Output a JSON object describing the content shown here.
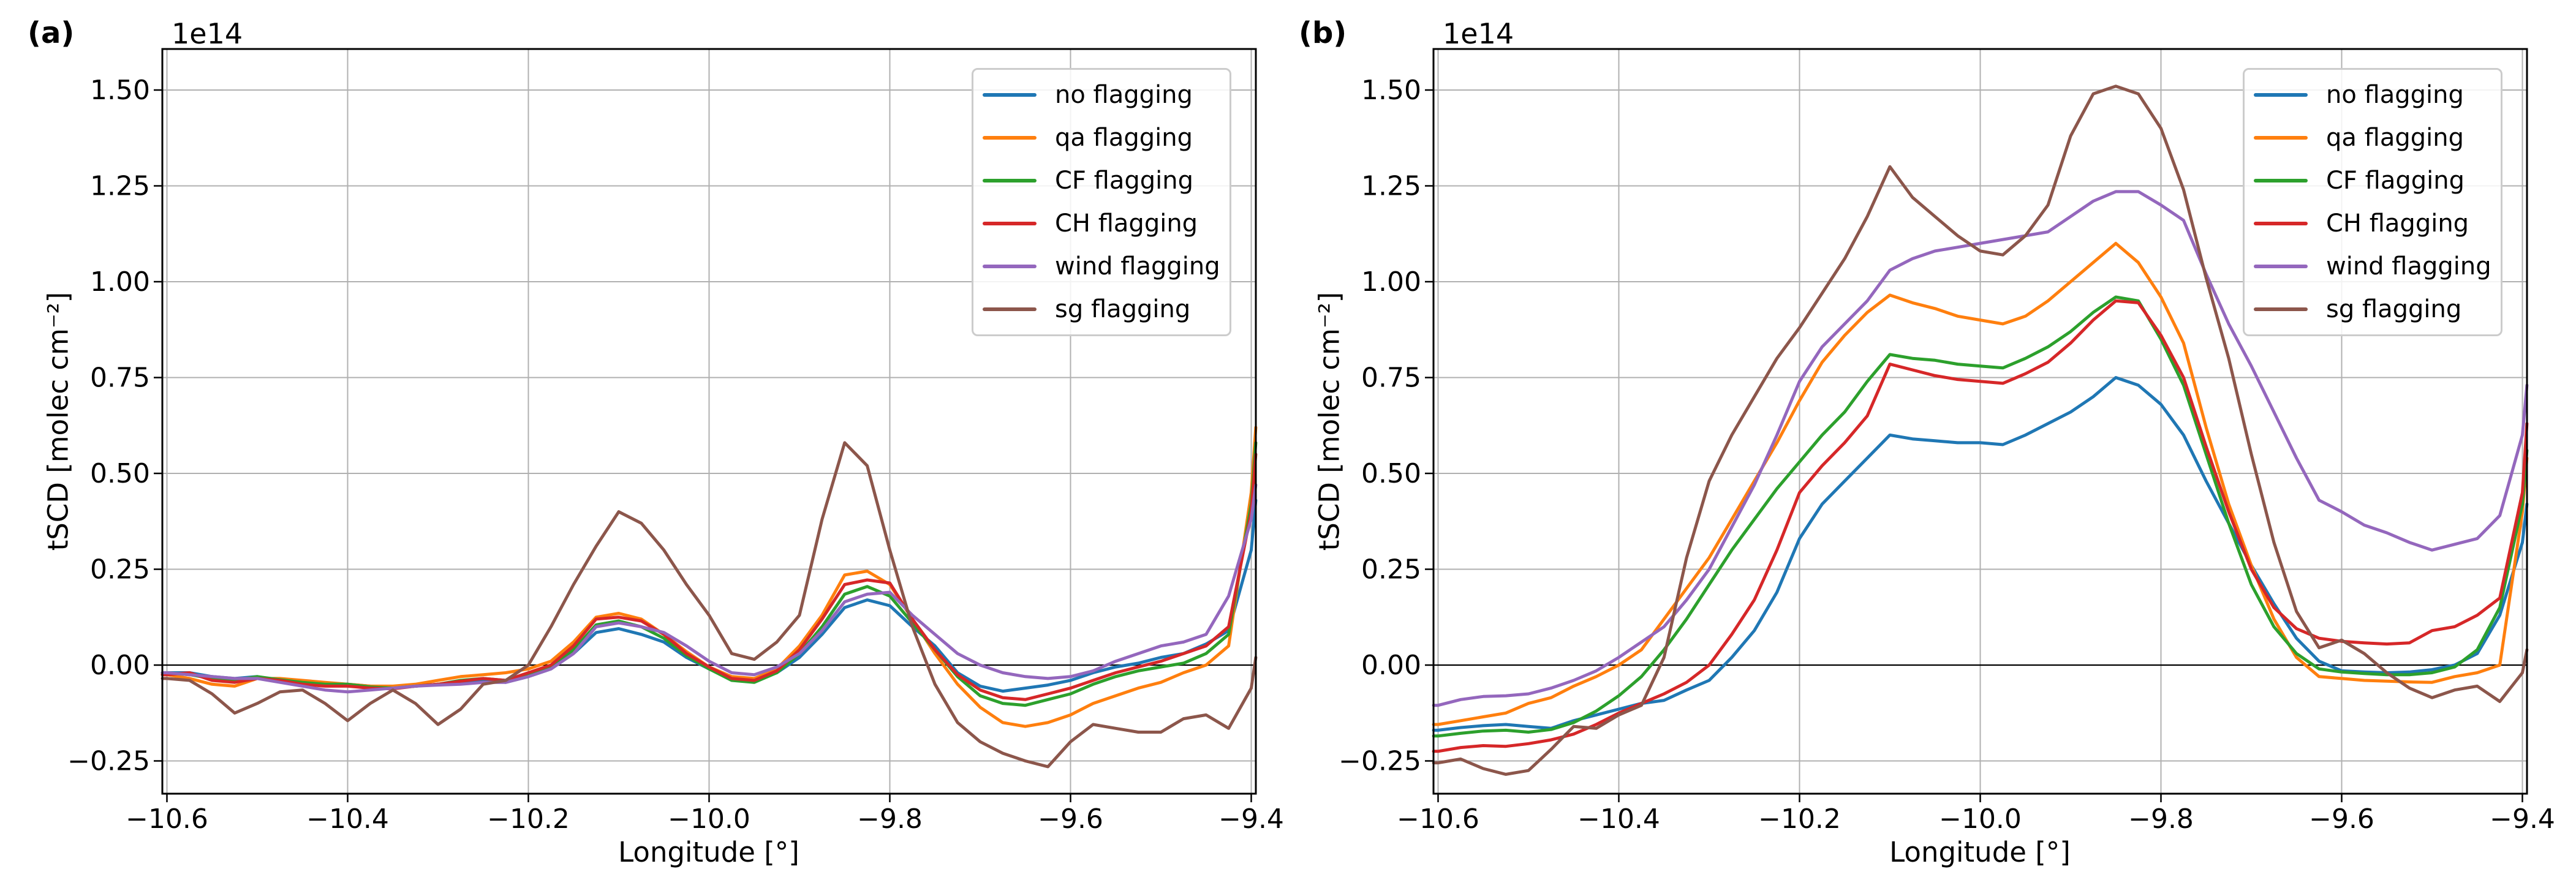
{
  "panels": [
    {
      "tag": "(a)",
      "offset_text": "1e14"
    },
    {
      "tag": "(b)",
      "offset_text": "1e14"
    }
  ],
  "legend": {
    "entries": [
      {
        "label": "no flagging",
        "color": "#1f77b4"
      },
      {
        "label": "qa flagging",
        "color": "#ff7f0e"
      },
      {
        "label": "CF flagging",
        "color": "#2ca02c"
      },
      {
        "label": "CH flagging",
        "color": "#d62728"
      },
      {
        "label": "wind flagging",
        "color": "#9467bd"
      },
      {
        "label": "sg flagging",
        "color": "#8c564b"
      }
    ],
    "position": "upper right"
  },
  "chart_data": [
    {
      "type": "line",
      "panel": "(a)",
      "xlabel": "Longitude [°]",
      "ylabel": "tSCD [molec cm⁻²]",
      "y_offset_text": "1e14",
      "grid": true,
      "zero_line": true,
      "legend_position": "upper right",
      "xlim": [
        -10.605,
        -9.395
      ],
      "ylim": [
        -0.335,
        1.607
      ],
      "xticks": {
        "values": [
          -10.6,
          -10.4,
          -10.2,
          -10.0,
          -9.8,
          -9.6,
          -9.4
        ],
        "labels": [
          "−10.6",
          "−10.4",
          "−10.2",
          "−10.0",
          "−9.8",
          "−9.6",
          "−9.4"
        ]
      },
      "yticks": {
        "values": [
          1.5,
          1.25,
          1.0,
          0.75,
          0.5,
          0.25,
          0.0,
          -0.25
        ],
        "labels": [
          "1.50",
          "1.25",
          "1.00",
          "0.75",
          "0.50",
          "0.25",
          "0.00",
          "−0.25"
        ]
      },
      "x": [
        -10.605,
        -10.6,
        -10.575,
        -10.55,
        -10.525,
        -10.5,
        -10.475,
        -10.45,
        -10.425,
        -10.4,
        -10.375,
        -10.35,
        -10.325,
        -10.3,
        -10.275,
        -10.25,
        -10.225,
        -10.2,
        -10.175,
        -10.15,
        -10.125,
        -10.1,
        -10.075,
        -10.05,
        -10.025,
        -10.0,
        -9.975,
        -9.95,
        -9.925,
        -9.9,
        -9.875,
        -9.85,
        -9.825,
        -9.8,
        -9.775,
        -9.75,
        -9.725,
        -9.7,
        -9.675,
        -9.65,
        -9.625,
        -9.6,
        -9.575,
        -9.55,
        -9.525,
        -9.5,
        -9.475,
        -9.45,
        -9.425,
        -9.4,
        -9.395
      ],
      "series": [
        {
          "name": "no flagging",
          "color": "#1f77b4",
          "values": [
            -0.02,
            -0.02,
            -0.02,
            -0.03,
            -0.035,
            -0.03,
            -0.04,
            -0.045,
            -0.05,
            -0.05,
            -0.055,
            -0.06,
            -0.055,
            -0.05,
            -0.045,
            -0.04,
            -0.045,
            -0.03,
            -0.01,
            0.03,
            0.085,
            0.095,
            0.08,
            0.06,
            0.02,
            -0.01,
            -0.035,
            -0.04,
            -0.02,
            0.02,
            0.08,
            0.15,
            0.17,
            0.155,
            0.1,
            0.05,
            -0.02,
            -0.055,
            -0.068,
            -0.06,
            -0.052,
            -0.04,
            -0.02,
            -0.005,
            0.005,
            0.02,
            0.03,
            0.055,
            0.09,
            0.3,
            0.43
          ]
        },
        {
          "name": "qa flagging",
          "color": "#ff7f0e",
          "values": [
            -0.025,
            -0.025,
            -0.035,
            -0.05,
            -0.055,
            -0.035,
            -0.035,
            -0.04,
            -0.045,
            -0.05,
            -0.055,
            -0.055,
            -0.05,
            -0.04,
            -0.03,
            -0.025,
            -0.02,
            -0.01,
            0.01,
            0.06,
            0.125,
            0.135,
            0.12,
            0.08,
            0.035,
            -0.005,
            -0.03,
            -0.035,
            -0.01,
            0.05,
            0.13,
            0.235,
            0.245,
            0.21,
            0.12,
            0.03,
            -0.05,
            -0.11,
            -0.15,
            -0.16,
            -0.15,
            -0.13,
            -0.1,
            -0.08,
            -0.06,
            -0.045,
            -0.02,
            0.0,
            0.05,
            0.45,
            0.62
          ]
        },
        {
          "name": "CF flagging",
          "color": "#2ca02c",
          "values": [
            -0.02,
            -0.02,
            -0.025,
            -0.035,
            -0.04,
            -0.03,
            -0.038,
            -0.045,
            -0.05,
            -0.05,
            -0.057,
            -0.06,
            -0.055,
            -0.05,
            -0.04,
            -0.035,
            -0.04,
            -0.025,
            -0.005,
            0.04,
            0.105,
            0.115,
            0.1,
            0.07,
            0.025,
            -0.01,
            -0.04,
            -0.045,
            -0.02,
            0.03,
            0.1,
            0.185,
            0.205,
            0.18,
            0.11,
            0.04,
            -0.03,
            -0.08,
            -0.1,
            -0.105,
            -0.09,
            -0.075,
            -0.05,
            -0.03,
            -0.015,
            -0.005,
            0.005,
            0.03,
            0.08,
            0.42,
            0.58
          ]
        },
        {
          "name": "CH flagging",
          "color": "#d62728",
          "values": [
            -0.025,
            -0.025,
            -0.02,
            -0.04,
            -0.045,
            -0.035,
            -0.04,
            -0.05,
            -0.055,
            -0.055,
            -0.06,
            -0.062,
            -0.055,
            -0.05,
            -0.042,
            -0.035,
            -0.04,
            -0.02,
            0.0,
            0.05,
            0.12,
            0.125,
            0.115,
            0.08,
            0.03,
            -0.005,
            -0.035,
            -0.04,
            -0.015,
            0.04,
            0.12,
            0.21,
            0.222,
            0.214,
            0.12,
            0.04,
            -0.025,
            -0.065,
            -0.085,
            -0.09,
            -0.075,
            -0.06,
            -0.04,
            -0.02,
            -0.005,
            0.01,
            0.03,
            0.05,
            0.1,
            0.4,
            0.55
          ]
        },
        {
          "name": "wind flagging",
          "color": "#9467bd",
          "values": [
            -0.02,
            -0.02,
            -0.025,
            -0.03,
            -0.035,
            -0.035,
            -0.045,
            -0.055,
            -0.065,
            -0.07,
            -0.065,
            -0.06,
            -0.055,
            -0.052,
            -0.05,
            -0.045,
            -0.045,
            -0.03,
            -0.01,
            0.03,
            0.1,
            0.11,
            0.1,
            0.085,
            0.05,
            0.01,
            -0.02,
            -0.025,
            -0.005,
            0.03,
            0.09,
            0.165,
            0.185,
            0.19,
            0.13,
            0.08,
            0.03,
            0.0,
            -0.02,
            -0.03,
            -0.035,
            -0.03,
            -0.015,
            0.01,
            0.03,
            0.05,
            0.06,
            0.08,
            0.18,
            0.38,
            0.47
          ]
        },
        {
          "name": "sg flagging",
          "color": "#8c564b",
          "values": [
            -0.035,
            -0.035,
            -0.04,
            -0.075,
            -0.125,
            -0.1,
            -0.07,
            -0.065,
            -0.1,
            -0.145,
            -0.1,
            -0.065,
            -0.1,
            -0.155,
            -0.115,
            -0.05,
            -0.04,
            0.0,
            0.1,
            0.21,
            0.31,
            0.4,
            0.37,
            0.3,
            0.21,
            0.13,
            0.03,
            0.015,
            0.06,
            0.13,
            0.38,
            0.58,
            0.52,
            0.3,
            0.1,
            -0.05,
            -0.15,
            -0.2,
            -0.23,
            -0.25,
            -0.265,
            -0.2,
            -0.155,
            -0.165,
            -0.175,
            -0.175,
            -0.14,
            -0.13,
            -0.165,
            -0.06,
            0.02
          ]
        }
      ]
    },
    {
      "type": "line",
      "panel": "(b)",
      "xlabel": "Longitude [°]",
      "ylabel": "tSCD [molec cm⁻²]",
      "y_offset_text": "1e14",
      "grid": true,
      "zero_line": true,
      "legend_position": "upper right",
      "xlim": [
        -10.605,
        -9.395
      ],
      "ylim": [
        -0.335,
        1.607
      ],
      "xticks": {
        "values": [
          -10.6,
          -10.4,
          -10.2,
          -10.0,
          -9.8,
          -9.6,
          -9.4
        ],
        "labels": [
          "−10.6",
          "−10.4",
          "−10.2",
          "−10.0",
          "−9.8",
          "−9.6",
          "−9.4"
        ]
      },
      "yticks": {
        "values": [
          1.5,
          1.25,
          1.0,
          0.75,
          0.5,
          0.25,
          0.0,
          -0.25
        ],
        "labels": [
          "1.50",
          "1.25",
          "1.00",
          "0.75",
          "0.50",
          "0.25",
          "0.00",
          "−0.25"
        ]
      },
      "x": [
        -10.605,
        -10.6,
        -10.575,
        -10.55,
        -10.525,
        -10.5,
        -10.475,
        -10.45,
        -10.425,
        -10.4,
        -10.375,
        -10.35,
        -10.325,
        -10.3,
        -10.275,
        -10.25,
        -10.225,
        -10.2,
        -10.175,
        -10.15,
        -10.125,
        -10.1,
        -10.075,
        -10.05,
        -10.025,
        -10.0,
        -9.975,
        -9.95,
        -9.925,
        -9.9,
        -9.875,
        -9.85,
        -9.825,
        -9.8,
        -9.775,
        -9.75,
        -9.725,
        -9.7,
        -9.675,
        -9.65,
        -9.625,
        -9.6,
        -9.575,
        -9.55,
        -9.525,
        -9.5,
        -9.475,
        -9.45,
        -9.425,
        -9.4,
        -9.395
      ],
      "series": [
        {
          "name": "no flagging",
          "color": "#1f77b4",
          "values": [
            -0.17,
            -0.17,
            -0.163,
            -0.158,
            -0.155,
            -0.16,
            -0.165,
            -0.145,
            -0.13,
            -0.115,
            -0.1,
            -0.092,
            -0.065,
            -0.04,
            0.02,
            0.09,
            0.19,
            0.33,
            0.42,
            0.48,
            0.54,
            0.6,
            0.59,
            0.585,
            0.58,
            0.58,
            0.575,
            0.6,
            0.63,
            0.66,
            0.7,
            0.75,
            0.73,
            0.68,
            0.6,
            0.48,
            0.37,
            0.26,
            0.16,
            0.07,
            0.01,
            -0.015,
            -0.018,
            -0.02,
            -0.018,
            -0.012,
            0.0,
            0.03,
            0.13,
            0.32,
            0.42
          ]
        },
        {
          "name": "qa flagging",
          "color": "#ff7f0e",
          "values": [
            -0.155,
            -0.155,
            -0.145,
            -0.135,
            -0.125,
            -0.1,
            -0.085,
            -0.055,
            -0.03,
            0.0,
            0.04,
            0.12,
            0.2,
            0.28,
            0.38,
            0.48,
            0.58,
            0.69,
            0.79,
            0.86,
            0.92,
            0.965,
            0.945,
            0.93,
            0.91,
            0.9,
            0.89,
            0.91,
            0.95,
            1.0,
            1.05,
            1.1,
            1.05,
            0.96,
            0.84,
            0.62,
            0.42,
            0.26,
            0.12,
            0.02,
            -0.03,
            -0.035,
            -0.04,
            -0.042,
            -0.044,
            -0.045,
            -0.03,
            -0.02,
            0.0,
            0.4,
            0.54
          ]
        },
        {
          "name": "CF flagging",
          "color": "#2ca02c",
          "values": [
            -0.185,
            -0.185,
            -0.178,
            -0.172,
            -0.17,
            -0.175,
            -0.168,
            -0.15,
            -0.12,
            -0.08,
            -0.03,
            0.04,
            0.12,
            0.21,
            0.3,
            0.38,
            0.46,
            0.53,
            0.6,
            0.66,
            0.74,
            0.81,
            0.8,
            0.795,
            0.785,
            0.78,
            0.775,
            0.8,
            0.83,
            0.87,
            0.92,
            0.96,
            0.95,
            0.85,
            0.73,
            0.55,
            0.37,
            0.21,
            0.1,
            0.03,
            -0.01,
            -0.018,
            -0.022,
            -0.025,
            -0.025,
            -0.02,
            -0.005,
            0.04,
            0.15,
            0.42,
            0.56
          ]
        },
        {
          "name": "CH flagging",
          "color": "#d62728",
          "values": [
            -0.225,
            -0.225,
            -0.215,
            -0.21,
            -0.212,
            -0.205,
            -0.195,
            -0.18,
            -0.155,
            -0.125,
            -0.1,
            -0.075,
            -0.045,
            0.0,
            0.08,
            0.17,
            0.3,
            0.45,
            0.52,
            0.58,
            0.65,
            0.785,
            0.77,
            0.755,
            0.745,
            0.74,
            0.735,
            0.76,
            0.79,
            0.84,
            0.9,
            0.95,
            0.945,
            0.86,
            0.75,
            0.57,
            0.4,
            0.25,
            0.15,
            0.095,
            0.07,
            0.062,
            0.058,
            0.055,
            0.058,
            0.09,
            0.1,
            0.13,
            0.175,
            0.45,
            0.63
          ]
        },
        {
          "name": "wind flagging",
          "color": "#9467bd",
          "values": [
            -0.105,
            -0.105,
            -0.09,
            -0.082,
            -0.08,
            -0.075,
            -0.06,
            -0.04,
            -0.015,
            0.02,
            0.06,
            0.1,
            0.17,
            0.25,
            0.36,
            0.47,
            0.6,
            0.74,
            0.83,
            0.89,
            0.95,
            1.03,
            1.06,
            1.08,
            1.09,
            1.1,
            1.11,
            1.12,
            1.13,
            1.17,
            1.21,
            1.235,
            1.235,
            1.2,
            1.16,
            1.02,
            0.89,
            0.78,
            0.66,
            0.54,
            0.43,
            0.4,
            0.365,
            0.345,
            0.32,
            0.3,
            0.315,
            0.33,
            0.39,
            0.6,
            0.73
          ]
        },
        {
          "name": "sg flagging",
          "color": "#8c564b",
          "values": [
            -0.255,
            -0.255,
            -0.245,
            -0.27,
            -0.285,
            -0.275,
            -0.22,
            -0.16,
            -0.165,
            -0.13,
            -0.105,
            0.02,
            0.28,
            0.48,
            0.6,
            0.7,
            0.8,
            0.88,
            0.97,
            1.06,
            1.17,
            1.3,
            1.22,
            1.17,
            1.12,
            1.08,
            1.07,
            1.12,
            1.2,
            1.38,
            1.49,
            1.51,
            1.49,
            1.4,
            1.24,
            1.01,
            0.8,
            0.55,
            0.32,
            0.14,
            0.045,
            0.065,
            0.03,
            -0.02,
            -0.06,
            -0.085,
            -0.065,
            -0.055,
            -0.095,
            -0.02,
            0.04
          ]
        }
      ]
    }
  ]
}
